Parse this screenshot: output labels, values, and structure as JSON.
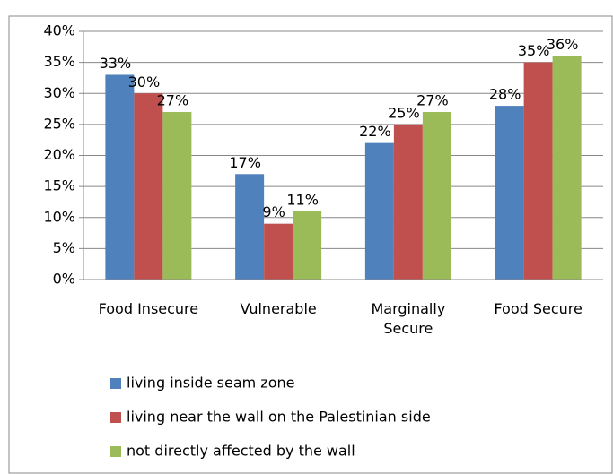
{
  "chart_data": {
    "type": "bar",
    "categories": [
      "Food Insecure",
      "Vulnerable",
      "Marginally Secure",
      "Food Secure"
    ],
    "series": [
      {
        "name": "living inside seam zone",
        "color": "#4f81bd",
        "values": [
          33,
          17,
          22,
          28
        ],
        "value_labels": [
          "33%",
          "17%",
          "22%",
          "28%"
        ]
      },
      {
        "name": "living near the wall on the Palestinian side",
        "color": "#c0504d",
        "values": [
          30,
          9,
          25,
          35
        ],
        "value_labels": [
          "30%",
          "9%",
          "25%",
          "35%"
        ]
      },
      {
        "name": "not directly affected by the wall",
        "color": "#9bbb59",
        "values": [
          27,
          11,
          27,
          36
        ],
        "value_labels": [
          "27%",
          "11%",
          "27%",
          "36%"
        ]
      }
    ],
    "ylim": [
      0,
      40
    ],
    "yticks": [
      {
        "value": 0,
        "label": "0%"
      },
      {
        "value": 5,
        "label": "5%"
      },
      {
        "value": 10,
        "label": "10%"
      },
      {
        "value": 15,
        "label": "15%"
      },
      {
        "value": 20,
        "label": "20%"
      },
      {
        "value": 25,
        "label": "25%"
      },
      {
        "value": 30,
        "label": "30%"
      },
      {
        "value": 35,
        "label": "35%"
      },
      {
        "value": 40,
        "label": "40%"
      }
    ],
    "grid": true,
    "legend": "bottom"
  }
}
